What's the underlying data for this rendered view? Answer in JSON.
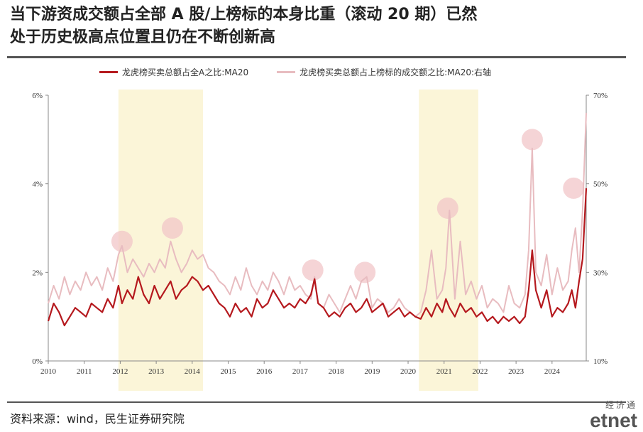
{
  "title_line1": "当下游资成交额占全部 A 股/上榜标的本身比重（滚动 20 期）已然",
  "title_line2": "处于历史极高点位置且仍在不断创新高",
  "source": "资料来源：wind，民生证券研究院",
  "watermark": {
    "top": "经济通",
    "main": "etnet"
  },
  "colors": {
    "left_series": "#b5191e",
    "right_series": "#e8bcc0",
    "highlight_band": "#fbf5d8",
    "peak_marker": "#f2c6c8"
  },
  "chart_data": {
    "type": "line",
    "legend_position": "top",
    "x_ticks": [
      "2010",
      "2011",
      "2012",
      "2013",
      "2014",
      "2015",
      "2016",
      "2017",
      "2018",
      "2019",
      "2020",
      "2021",
      "2022",
      "2023",
      "2024"
    ],
    "y_left_ticks": [
      "0%",
      "2%",
      "4%",
      "6%"
    ],
    "y_right_ticks": [
      "10%",
      "30%",
      "50%",
      "70%"
    ],
    "y_left_range": [
      0,
      6
    ],
    "y_right_range": [
      10,
      70
    ],
    "x_range": [
      2010.0,
      2024.95
    ],
    "highlight_periods": [
      [
        2011.95,
        2014.3
      ],
      [
        2020.3,
        2021.95
      ]
    ],
    "peak_markers": [
      [
        2012.05,
        2.7
      ],
      [
        2013.45,
        3.0
      ],
      [
        2017.35,
        2.05
      ],
      [
        2018.8,
        2.0
      ],
      [
        2021.1,
        3.45
      ],
      [
        2023.45,
        5.0
      ],
      [
        2024.6,
        3.9
      ]
    ],
    "series": [
      {
        "name": "龙虎榜买卖总额占全A之比:MA20",
        "axis": "left",
        "x": [
          2010.0,
          2010.15,
          2010.3,
          2010.45,
          2010.6,
          2010.75,
          2010.9,
          2011.05,
          2011.2,
          2011.35,
          2011.5,
          2011.65,
          2011.8,
          2011.95,
          2012.05,
          2012.2,
          2012.35,
          2012.5,
          2012.65,
          2012.8,
          2012.95,
          2013.1,
          2013.25,
          2013.4,
          2013.55,
          2013.7,
          2013.85,
          2014.0,
          2014.15,
          2014.3,
          2014.45,
          2014.6,
          2014.75,
          2014.9,
          2015.05,
          2015.2,
          2015.35,
          2015.5,
          2015.65,
          2015.8,
          2015.95,
          2016.1,
          2016.25,
          2016.4,
          2016.55,
          2016.7,
          2016.85,
          2017.0,
          2017.15,
          2017.3,
          2017.4,
          2017.5,
          2017.65,
          2017.8,
          2017.95,
          2018.1,
          2018.25,
          2018.4,
          2018.55,
          2018.7,
          2018.85,
          2019.0,
          2019.15,
          2019.3,
          2019.45,
          2019.6,
          2019.75,
          2019.9,
          2020.05,
          2020.2,
          2020.35,
          2020.5,
          2020.65,
          2020.8,
          2020.95,
          2021.05,
          2021.15,
          2021.3,
          2021.45,
          2021.6,
          2021.75,
          2021.9,
          2022.05,
          2022.2,
          2022.35,
          2022.5,
          2022.65,
          2022.8,
          2022.95,
          2023.1,
          2023.25,
          2023.35,
          2023.45,
          2023.55,
          2023.7,
          2023.85,
          2024.0,
          2024.15,
          2024.3,
          2024.45,
          2024.55,
          2024.65,
          2024.75,
          2024.85,
          2024.95
        ],
        "y": [
          0.9,
          1.3,
          1.1,
          0.8,
          1.0,
          1.2,
          1.1,
          1.0,
          1.3,
          1.2,
          1.1,
          1.4,
          1.2,
          1.7,
          1.3,
          1.6,
          1.4,
          1.9,
          1.5,
          1.3,
          1.7,
          1.4,
          1.6,
          1.8,
          1.4,
          1.6,
          1.7,
          1.9,
          1.8,
          1.6,
          1.7,
          1.5,
          1.3,
          1.2,
          1.0,
          1.3,
          1.1,
          1.2,
          1.0,
          1.4,
          1.2,
          1.3,
          1.6,
          1.4,
          1.2,
          1.3,
          1.2,
          1.4,
          1.3,
          1.5,
          1.85,
          1.3,
          1.2,
          1.0,
          1.1,
          1.0,
          1.2,
          1.3,
          1.1,
          1.2,
          1.4,
          1.1,
          1.2,
          1.3,
          1.0,
          1.1,
          1.2,
          1.0,
          1.1,
          1.0,
          0.95,
          1.2,
          1.0,
          1.3,
          1.1,
          1.4,
          1.2,
          1.0,
          1.3,
          1.1,
          1.2,
          1.0,
          1.1,
          0.9,
          1.0,
          0.85,
          1.0,
          0.9,
          1.0,
          0.85,
          1.0,
          1.6,
          2.5,
          1.6,
          1.2,
          1.6,
          1.0,
          1.2,
          1.1,
          1.3,
          1.6,
          1.2,
          1.8,
          2.3,
          3.9
        ]
      },
      {
        "name": "龙虎榜买卖总额占上榜标的成交额之比:MA20:右轴",
        "axis": "right",
        "x": [
          2010.0,
          2010.15,
          2010.3,
          2010.45,
          2010.6,
          2010.75,
          2010.9,
          2011.05,
          2011.2,
          2011.35,
          2011.5,
          2011.65,
          2011.8,
          2011.95,
          2012.05,
          2012.2,
          2012.35,
          2012.5,
          2012.65,
          2012.8,
          2012.95,
          2013.1,
          2013.25,
          2013.4,
          2013.55,
          2013.7,
          2013.85,
          2014.0,
          2014.15,
          2014.3,
          2014.45,
          2014.6,
          2014.75,
          2014.9,
          2015.05,
          2015.2,
          2015.35,
          2015.5,
          2015.65,
          2015.8,
          2015.95,
          2016.1,
          2016.25,
          2016.4,
          2016.55,
          2016.7,
          2016.85,
          2017.0,
          2017.15,
          2017.3,
          2017.4,
          2017.5,
          2017.65,
          2017.8,
          2017.95,
          2018.1,
          2018.25,
          2018.4,
          2018.55,
          2018.7,
          2018.85,
          2019.0,
          2019.15,
          2019.3,
          2019.45,
          2019.6,
          2019.75,
          2019.9,
          2020.05,
          2020.2,
          2020.35,
          2020.5,
          2020.65,
          2020.8,
          2020.95,
          2021.05,
          2021.15,
          2021.3,
          2021.45,
          2021.6,
          2021.75,
          2021.9,
          2022.05,
          2022.2,
          2022.35,
          2022.5,
          2022.65,
          2022.8,
          2022.95,
          2023.1,
          2023.25,
          2023.35,
          2023.45,
          2023.55,
          2023.7,
          2023.85,
          2024.0,
          2024.15,
          2024.3,
          2024.45,
          2024.55,
          2024.65,
          2024.75,
          2024.85,
          2024.95
        ],
        "y": [
          23,
          27,
          24,
          29,
          25,
          28,
          26,
          30,
          27,
          29,
          26,
          31,
          28,
          34,
          36,
          30,
          33,
          31,
          29,
          32,
          30,
          33,
          31,
          37,
          33,
          30,
          32,
          35,
          33,
          34,
          31,
          30,
          28,
          27,
          25,
          29,
          26,
          31,
          27,
          25,
          28,
          26,
          30,
          28,
          25,
          29,
          26,
          27,
          25,
          24,
          29,
          23,
          22,
          25,
          23,
          21,
          24,
          27,
          24,
          28,
          29,
          22,
          24,
          23,
          21,
          22,
          24,
          22,
          21,
          20,
          21,
          26,
          35,
          24,
          26,
          31,
          44,
          24,
          37,
          25,
          28,
          24,
          27,
          22,
          24,
          23,
          21,
          27,
          23,
          22,
          25,
          35,
          58,
          30,
          27,
          34,
          25,
          31,
          26,
          28,
          35,
          40,
          30,
          44,
          66
        ]
      }
    ]
  }
}
